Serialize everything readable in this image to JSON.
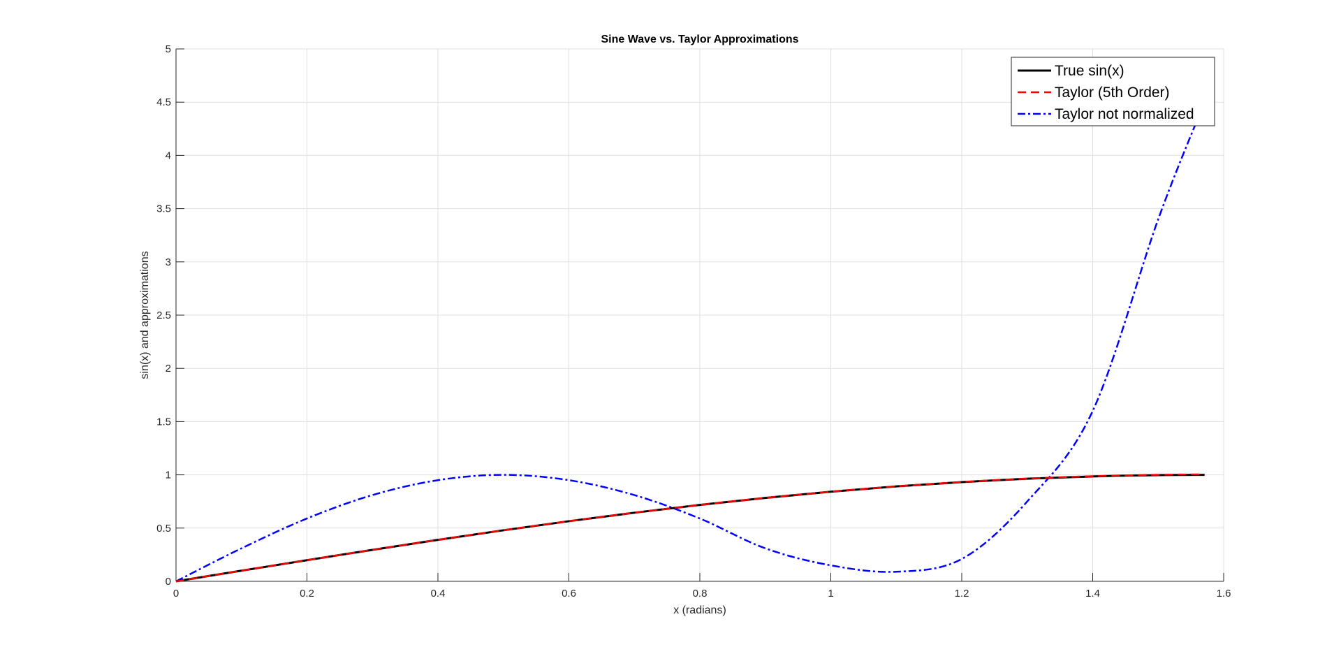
{
  "chart_data": {
    "type": "line",
    "title": "Sine Wave vs. Taylor Approximations",
    "xlabel": "x (radians)",
    "ylabel": "sin(x) and approximations",
    "xlim": [
      0,
      1.6
    ],
    "ylim": [
      0,
      5
    ],
    "xticks": [
      0,
      0.2,
      0.4,
      0.6,
      0.8,
      1,
      1.2,
      1.4,
      1.6
    ],
    "xtick_labels": [
      "0",
      "0.2",
      "0.4",
      "0.6",
      "0.8",
      "1",
      "1.2",
      "1.4",
      "1.6"
    ],
    "yticks": [
      0,
      0.5,
      1,
      1.5,
      2,
      2.5,
      3,
      3.5,
      4,
      4.5,
      5
    ],
    "ytick_labels": [
      "0",
      "0.5",
      "1",
      "1.5",
      "2",
      "2.5",
      "3",
      "3.5",
      "4",
      "4.5",
      "5"
    ],
    "grid": true,
    "legend_position": "top-right",
    "x": [
      0,
      0.1,
      0.2,
      0.3,
      0.4,
      0.5,
      0.6,
      0.7,
      0.8,
      0.9,
      1.0,
      1.1,
      1.2,
      1.3,
      1.4,
      1.5,
      1.5708
    ],
    "series": [
      {
        "name": "True sin(x)",
        "color": "#000000",
        "style": "solid",
        "values": [
          0,
          0.0998,
          0.1987,
          0.2955,
          0.3894,
          0.4794,
          0.5646,
          0.6442,
          0.7174,
          0.7833,
          0.8415,
          0.8912,
          0.932,
          0.9636,
          0.9854,
          0.9975,
          1.0
        ]
      },
      {
        "name": "Taylor (5th Order)",
        "color": "#ff0000",
        "style": "dashed",
        "values": [
          0,
          0.0998,
          0.1987,
          0.2955,
          0.3894,
          0.4794,
          0.5646,
          0.6442,
          0.7174,
          0.7834,
          0.8417,
          0.8915,
          0.9326,
          0.9648,
          0.9875,
          1.0008,
          1.0045
        ]
      },
      {
        "name": "Taylor not normalized",
        "color": "#0000ff",
        "style": "dashdot",
        "values": [
          0,
          0.31,
          0.59,
          0.81,
          0.95,
          1.0,
          0.95,
          0.81,
          0.59,
          0.31,
          0.15,
          0.09,
          0.21,
          0.75,
          1.6,
          3.4,
          4.5
        ]
      }
    ]
  }
}
